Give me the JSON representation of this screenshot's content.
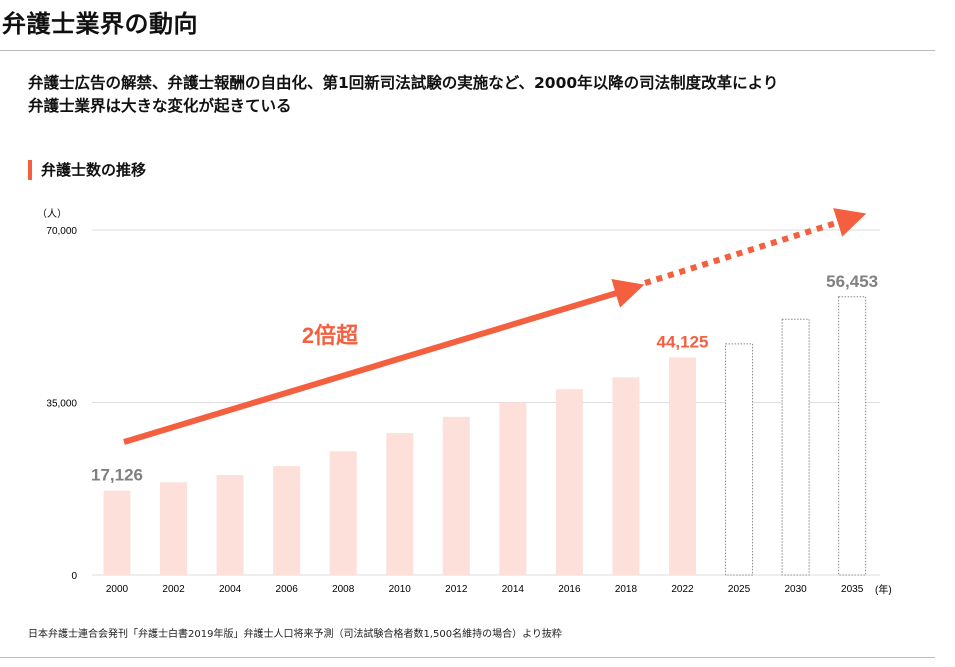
{
  "header": {
    "title": "弁護士業界の動向"
  },
  "lead": {
    "line1": "弁護士広告の解禁、弁護士報酬の自由化、第1回新司法試験の実施など、2000年以降の司法制度改革により",
    "line2": "弁護士業界は大きな変化が起きている"
  },
  "section": {
    "title": "弁護士数の推移"
  },
  "source": "日本弁護士連合会発刊「弁護士白書2019年版」弁護士人口将来予測（司法試験合格者数1,500名維持の場合）より抜粋",
  "colors": {
    "accent": "#f4603f",
    "bar": "#fde0da",
    "projection": "#888888",
    "label_gray": "#808080"
  },
  "chart_data": {
    "type": "bar",
    "ylabel": "（人）",
    "xunit": "(年)",
    "ylim": [
      0,
      70000
    ],
    "yticks": [
      {
        "v": 0,
        "label": "0"
      },
      {
        "v": 35000,
        "label": "35,000"
      },
      {
        "v": 70000,
        "label": "70,000"
      }
    ],
    "grid": true,
    "categories": [
      "2000",
      "2002",
      "2004",
      "2006",
      "2008",
      "2010",
      "2012",
      "2014",
      "2016",
      "2018",
      "2022",
      "2025",
      "2030",
      "2035"
    ],
    "values": [
      17126,
      18800,
      20300,
      22100,
      25100,
      28800,
      32100,
      35000,
      37700,
      40100,
      44125,
      46900,
      51900,
      56453
    ],
    "projected": [
      false,
      false,
      false,
      false,
      false,
      false,
      false,
      false,
      false,
      false,
      false,
      true,
      true,
      true
    ],
    "data_labels": [
      {
        "index": 0,
        "text": "17,126",
        "color": "#808080"
      },
      {
        "index": 10,
        "text": "44,125",
        "color": "#f4603f"
      },
      {
        "index": 13,
        "text": "56,453",
        "color": "#808080"
      }
    ],
    "annotation": "2倍超"
  }
}
